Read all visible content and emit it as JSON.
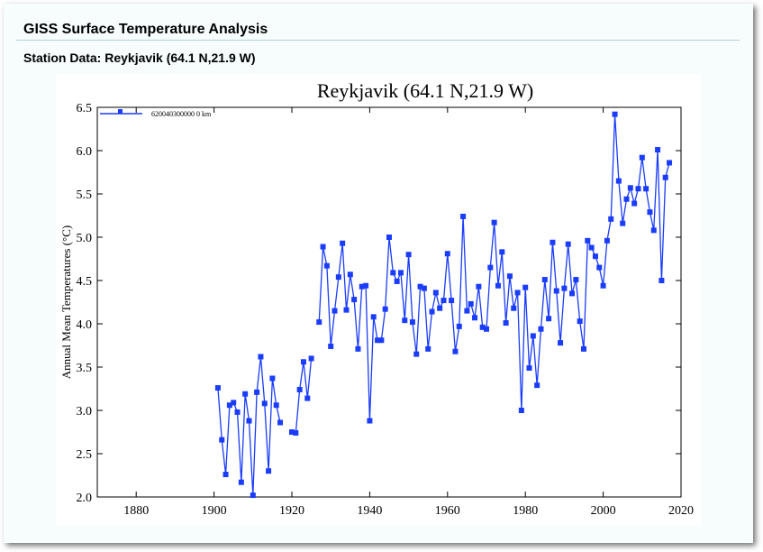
{
  "header": {
    "title": "GISS Surface Temperature Analysis",
    "subtitle": "Station Data: Reykjavik (64.1 N,21.9 W)"
  },
  "chart_data": {
    "type": "line",
    "title": "Reykjavik (64.1 N,21.9 W)",
    "xlabel": "",
    "ylabel": "Annual Mean Temperatures (°C)",
    "xlim": [
      1870,
      2020
    ],
    "ylim": [
      2.0,
      6.5
    ],
    "xticks": [
      "1880",
      "1900",
      "1920",
      "1940",
      "1960",
      "1980",
      "2000",
      "2020"
    ],
    "yticks": [
      "2.0",
      "2.5",
      "3.0",
      "3.5",
      "4.0",
      "4.5",
      "5.0",
      "5.5",
      "6.0",
      "6.5"
    ],
    "legend": {
      "label": "620040300000  0 km",
      "position": "top-left"
    },
    "series": [
      {
        "name": "620040300000  0 km",
        "color": "#1a3cff",
        "x0": 1901,
        "values": [
          3.26,
          2.66,
          2.26,
          3.06,
          3.09,
          2.98,
          2.17,
          3.19,
          2.88,
          2.02,
          3.21,
          3.62,
          3.08,
          2.3,
          3.37,
          3.06,
          2.86,
          null,
          null,
          2.75,
          2.74,
          3.24,
          3.56,
          3.14,
          3.6,
          null,
          4.02,
          4.89,
          4.67,
          3.74,
          4.15,
          4.54,
          4.93,
          4.16,
          4.57,
          4.28,
          3.71,
          4.43,
          4.44,
          2.88,
          4.08,
          3.81,
          3.81,
          4.17,
          5.0,
          4.59,
          4.49,
          4.59,
          4.04,
          4.8,
          4.02,
          3.65,
          4.43,
          4.41,
          3.71,
          4.14,
          4.36,
          4.18,
          4.27,
          4.81,
          4.27,
          3.68,
          3.97,
          5.24,
          4.15,
          4.23,
          4.07,
          4.43,
          3.96,
          3.94,
          4.65,
          5.17,
          4.44,
          4.83,
          4.01,
          4.55,
          4.18,
          4.36,
          3.0,
          4.42,
          3.49,
          3.86,
          3.29,
          3.94,
          4.51,
          4.06,
          4.94,
          4.38,
          3.78,
          4.41,
          4.92,
          4.35,
          4.51,
          4.03,
          3.71,
          4.96,
          4.88,
          4.78,
          4.65,
          4.44,
          4.96,
          5.21,
          6.42,
          5.65,
          5.16,
          5.44,
          5.57,
          5.39,
          5.56,
          5.92,
          5.56,
          5.29,
          5.08,
          6.01,
          4.5,
          5.69,
          5.86
        ]
      }
    ]
  }
}
